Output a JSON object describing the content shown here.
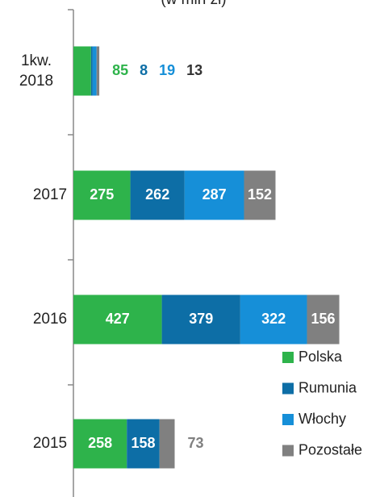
{
  "chart_data": {
    "type": "stacked-barh",
    "subtitle": "(w mln zł)",
    "categories": [
      "1kw. 2018",
      "2017",
      "2016",
      "2015"
    ],
    "series": [
      {
        "name": "Polska",
        "color": "#2eb34b",
        "values": [
          85,
          275,
          427,
          258
        ]
      },
      {
        "name": "Rumunia",
        "color": "#0d6ea6",
        "values": [
          8,
          262,
          379,
          158
        ]
      },
      {
        "name": "Włochy",
        "color": "#168fd8",
        "values": [
          19,
          287,
          322,
          null
        ]
      },
      {
        "name": "Pozostałe",
        "color": "#808080",
        "values": [
          13,
          152,
          156,
          73
        ]
      }
    ],
    "xlim": [
      0,
      1500
    ],
    "legend": "lower right"
  }
}
